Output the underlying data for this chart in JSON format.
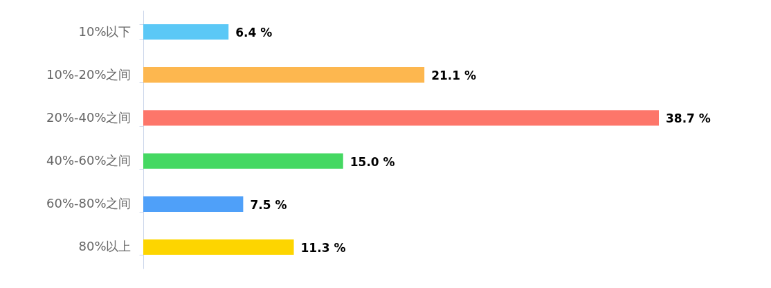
{
  "chart_data": {
    "type": "bar",
    "orientation": "horizontal",
    "categories": [
      "10%以下",
      "10%-20%之间",
      "20%-40%之间",
      "40%-60%之间",
      "60%-80%之间",
      "80%以上"
    ],
    "values": [
      6.4,
      21.1,
      38.7,
      15.0,
      7.5,
      11.3
    ],
    "value_labels": [
      "6.4 %",
      "21.1 %",
      "38.7 %",
      "15.0 %",
      "7.5 %",
      "11.3 %"
    ],
    "colors": [
      "#5bc8f6",
      "#fdb74f",
      "#fd766a",
      "#45d862",
      "#4fa0f9",
      "#fdd500"
    ],
    "grid": false
  }
}
